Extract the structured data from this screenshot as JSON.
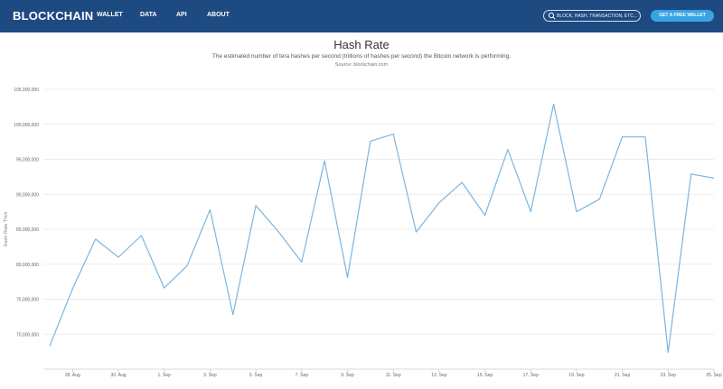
{
  "header": {
    "logo": "BLOCKCHAIN",
    "nav": [
      "WALLET",
      "DATA",
      "API",
      "ABOUT"
    ],
    "search_placeholder": "BLOCK, HASH, TRANSACTION, ETC...",
    "cta_label": "GET A FREE WALLET"
  },
  "colors": {
    "header_bg": "#1e4a82",
    "cta_bg": "#3aa3e3",
    "line": "#7ab6e1",
    "grid": "#e6e6e6"
  },
  "page": {
    "title": "Hash Rate",
    "subtitle": "The estimated number of tera hashes per second (trillions of hashes per second) the Bitcoin network is performing.",
    "source": "Source: blockchain.com"
  },
  "chart_data": {
    "type": "line",
    "title": "Hash Rate",
    "xlabel": "",
    "ylabel": "Hash Rate TH/s",
    "ylim": [
      65000000,
      105000000
    ],
    "yticks": [
      70000000,
      75000000,
      80000000,
      85000000,
      90000000,
      95000000,
      100000000,
      105000000
    ],
    "ytick_labels": [
      "70,000,000",
      "75,000,000",
      "80,000,000",
      "85,000,000",
      "90,000,000",
      "95,000,000",
      "100,000,000",
      "105,000,000"
    ],
    "xticks": [
      1,
      3,
      5,
      7,
      9,
      11,
      13,
      15,
      17,
      19,
      21,
      23,
      25,
      27,
      29
    ],
    "xtick_labels": [
      "28. Aug",
      "30. Aug",
      "1. Sep",
      "3. Sep",
      "5. Sep",
      "7. Sep",
      "9. Sep",
      "11. Sep",
      "13. Sep",
      "15. Sep",
      "17. Sep",
      "19. Sep",
      "21. Sep",
      "23. Sep",
      "25. Sep"
    ],
    "xlim": [
      0,
      29
    ],
    "grid": true,
    "legend": "none",
    "series": [
      {
        "x": [
          0,
          1,
          2,
          3,
          4,
          5,
          6,
          7,
          8,
          9,
          10,
          11,
          12,
          13,
          14,
          15,
          16,
          17,
          18,
          19,
          20,
          21,
          22,
          23,
          24,
          25,
          26,
          27,
          28,
          29
        ],
        "values": [
          68300000,
          76500000,
          83600000,
          81000000,
          84100000,
          76600000,
          79800000,
          87800000,
          72800000,
          88400000,
          84600000,
          80300000,
          94800000,
          78100000,
          97600000,
          98600000,
          84600000,
          88800000,
          91700000,
          87000000,
          96400000,
          87500000,
          102900000,
          87500000,
          89300000,
          98200000,
          98200000,
          67400000,
          92900000,
          92300000
        ]
      }
    ]
  }
}
